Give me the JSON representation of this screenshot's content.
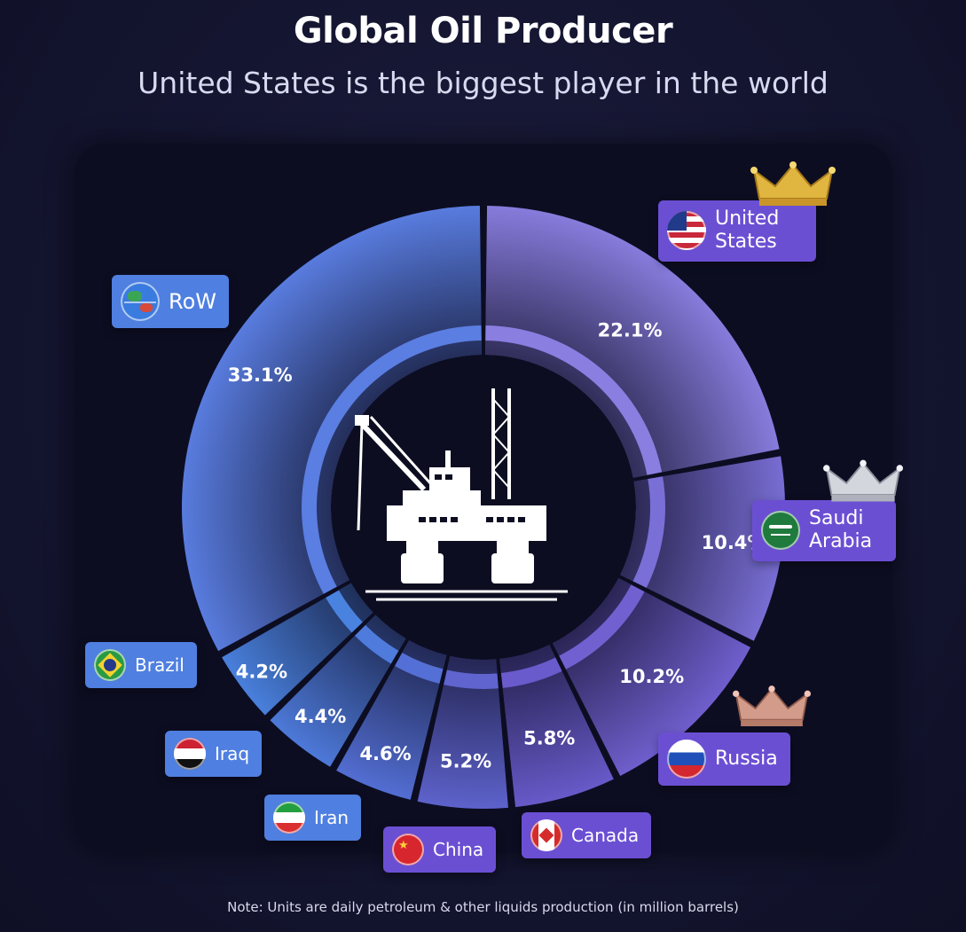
{
  "title": "Global Oil Producer",
  "subtitle": "United States is the biggest player in the world",
  "note": "Note: Units are daily petroleum & other liquids production (in million barrels)",
  "colors": {
    "background": "#141530",
    "panel": "#0d0d22",
    "purple_label": "#6b4fd3",
    "blue_label": "#4f7fe0"
  },
  "center_icon": "oil-rig-icon",
  "chart_data": {
    "type": "pie",
    "style": "donut",
    "unit": "%",
    "slices": [
      {
        "label": "United States",
        "value": 22.1,
        "pct_label": "22.1%",
        "color": "#8a7ee0",
        "flag": "us-flag-icon",
        "badge": "gold-crown-icon"
      },
      {
        "label": "Saudi Arabia",
        "value": 10.4,
        "pct_label": "10.4%",
        "color": "#7a6fd6",
        "flag": "saudi-flag-icon",
        "badge": "silver-crown-icon"
      },
      {
        "label": "Russia",
        "value": 10.2,
        "pct_label": "10.2%",
        "color": "#7160d0",
        "flag": "russia-flag-icon",
        "badge": "bronze-crown-icon"
      },
      {
        "label": "Canada",
        "value": 5.8,
        "pct_label": "5.8%",
        "color": "#6a5bcc",
        "flag": "canada-flag-icon"
      },
      {
        "label": "China",
        "value": 5.2,
        "pct_label": "5.2%",
        "color": "#5f64cf",
        "flag": "china-flag-icon"
      },
      {
        "label": "Iran",
        "value": 4.6,
        "pct_label": "4.6%",
        "color": "#5470d6",
        "flag": "iran-flag-icon"
      },
      {
        "label": "Iraq",
        "value": 4.4,
        "pct_label": "4.4%",
        "color": "#4e7bdc",
        "flag": "iraq-flag-icon"
      },
      {
        "label": "Brazil",
        "value": 4.2,
        "pct_label": "4.2%",
        "color": "#4a82e0",
        "flag": "brazil-flag-icon"
      },
      {
        "label": "RoW",
        "value": 33.1,
        "pct_label": "33.1%",
        "color": "#5a7ee2",
        "flag": "globe-icon"
      }
    ]
  }
}
